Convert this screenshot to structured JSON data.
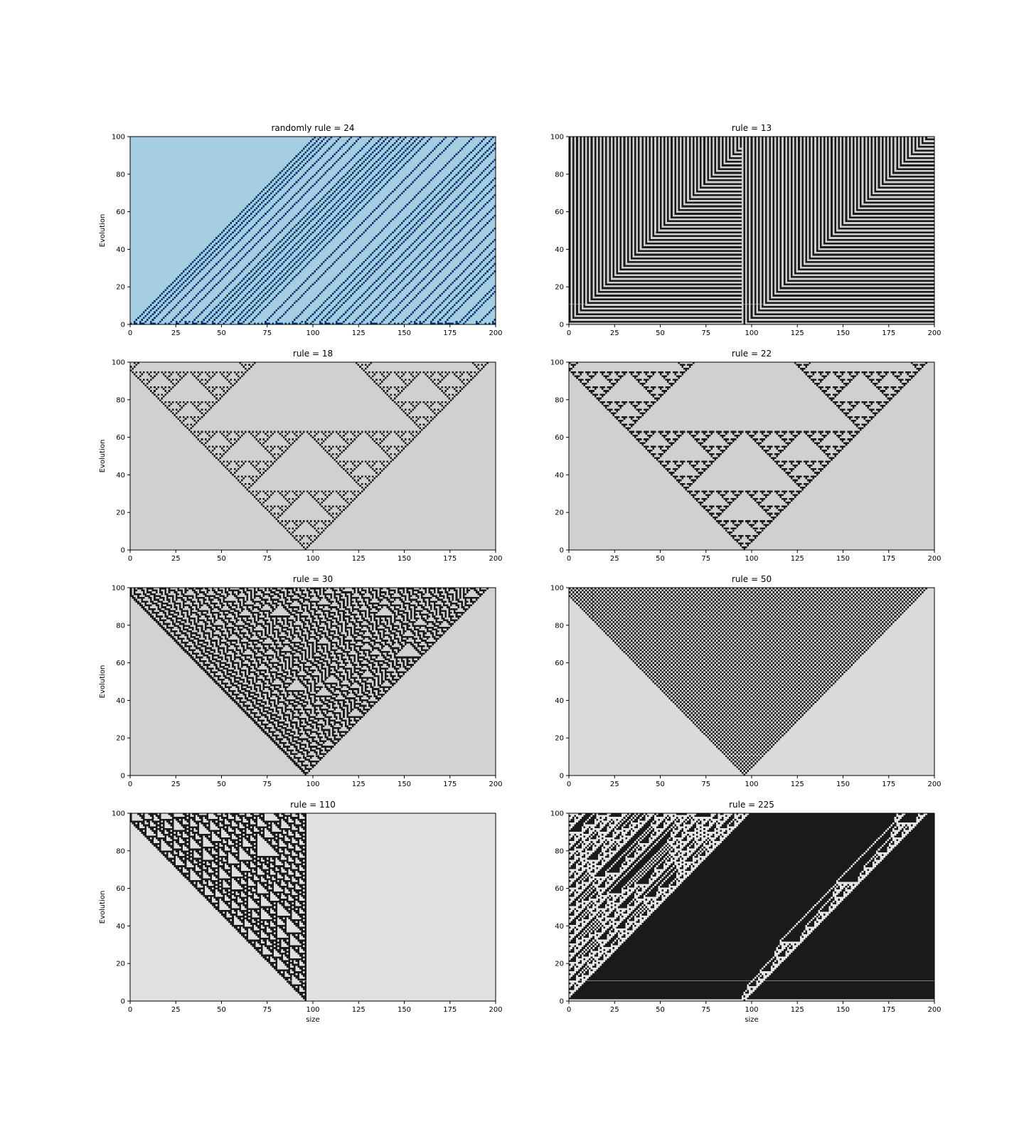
{
  "figure": {
    "layout": "4 rows x 2 columns grid of cellular automaton plots",
    "xlabel": "size",
    "ylabel": "Evolution"
  },
  "chart_data": [
    {
      "type": "heatmap",
      "title": "randomly rule = 24",
      "rule": 24,
      "colormap": "Blues",
      "initial": "random",
      "background": "#a6cee3",
      "foreground": "#08306b",
      "xlim": [
        0,
        200
      ],
      "ylim": [
        0,
        100
      ],
      "xticks": [
        0,
        25,
        50,
        75,
        100,
        125,
        150,
        175,
        200
      ],
      "yticks": [
        0,
        20,
        40,
        60,
        80,
        100
      ],
      "xlabel": "",
      "ylabel": "Evolution"
    },
    {
      "type": "heatmap",
      "title": "rule = 13",
      "rule": 13,
      "colormap": "gray",
      "initial": "single cell at 96",
      "background": "#d0d0d0",
      "foreground": "#1a1a1a",
      "xlim": [
        0,
        200
      ],
      "ylim": [
        0,
        100
      ],
      "xticks": [
        0,
        25,
        50,
        75,
        100,
        125,
        150,
        175,
        200
      ],
      "yticks": [
        0,
        20,
        40,
        60,
        80,
        100
      ],
      "xlabel": "",
      "ylabel": ""
    },
    {
      "type": "heatmap",
      "title": "rule = 18",
      "rule": 18,
      "colormap": "gray",
      "initial": "single cell at 96",
      "background": "#d0d0d0",
      "foreground": "#1a1a1a",
      "xlim": [
        0,
        200
      ],
      "ylim": [
        0,
        100
      ],
      "xticks": [
        0,
        25,
        50,
        75,
        100,
        125,
        150,
        175,
        200
      ],
      "yticks": [
        0,
        20,
        40,
        60,
        80,
        100
      ],
      "xlabel": "",
      "ylabel": "Evolution"
    },
    {
      "type": "heatmap",
      "title": "rule = 22",
      "rule": 22,
      "colormap": "gray",
      "initial": "single cell at 96",
      "background": "#d0d0d0",
      "foreground": "#1a1a1a",
      "xlim": [
        0,
        200
      ],
      "ylim": [
        0,
        100
      ],
      "xticks": [
        0,
        25,
        50,
        75,
        100,
        125,
        150,
        175,
        200
      ],
      "yticks": [
        0,
        20,
        40,
        60,
        80,
        100
      ],
      "xlabel": "",
      "ylabel": ""
    },
    {
      "type": "heatmap",
      "title": "rule = 30",
      "rule": 30,
      "colormap": "gray",
      "initial": "single cell at 96",
      "background": "#d2d2d2",
      "foreground": "#1a1a1a",
      "xlim": [
        0,
        200
      ],
      "ylim": [
        0,
        100
      ],
      "xticks": [
        0,
        25,
        50,
        75,
        100,
        125,
        150,
        175,
        200
      ],
      "yticks": [
        0,
        20,
        40,
        60,
        80,
        100
      ],
      "xlabel": "",
      "ylabel": "Evolution"
    },
    {
      "type": "heatmap",
      "title": "rule = 50",
      "rule": 50,
      "colormap": "gray",
      "initial": "single cell at 96",
      "background": "#dadada",
      "foreground": "#1a1a1a",
      "xlim": [
        0,
        200
      ],
      "ylim": [
        0,
        100
      ],
      "xticks": [
        0,
        25,
        50,
        75,
        100,
        125,
        150,
        175,
        200
      ],
      "yticks": [
        0,
        20,
        40,
        60,
        80,
        100
      ],
      "xlabel": "",
      "ylabel": ""
    },
    {
      "type": "heatmap",
      "title": "rule = 110",
      "rule": 110,
      "colormap": "gray",
      "initial": "single cell at 96",
      "background": "#e0e0e0",
      "foreground": "#1a1a1a",
      "xlim": [
        0,
        200
      ],
      "ylim": [
        0,
        100
      ],
      "xticks": [
        0,
        25,
        50,
        75,
        100,
        125,
        150,
        175,
        200
      ],
      "yticks": [
        0,
        20,
        40,
        60,
        80,
        100
      ],
      "xlabel": "size",
      "ylabel": "Evolution"
    },
    {
      "type": "heatmap",
      "title": "rule = 225",
      "rule": 225,
      "colormap": "gray",
      "initial": "single cell at 96",
      "background": "#e6e6e6",
      "foreground": "#1a1a1a",
      "xlim": [
        0,
        200
      ],
      "ylim": [
        0,
        100
      ],
      "xticks": [
        0,
        25,
        50,
        75,
        100,
        125,
        150,
        175,
        200
      ],
      "yticks": [
        0,
        20,
        40,
        60,
        80,
        100
      ],
      "xlabel": "size",
      "ylabel": ""
    }
  ]
}
